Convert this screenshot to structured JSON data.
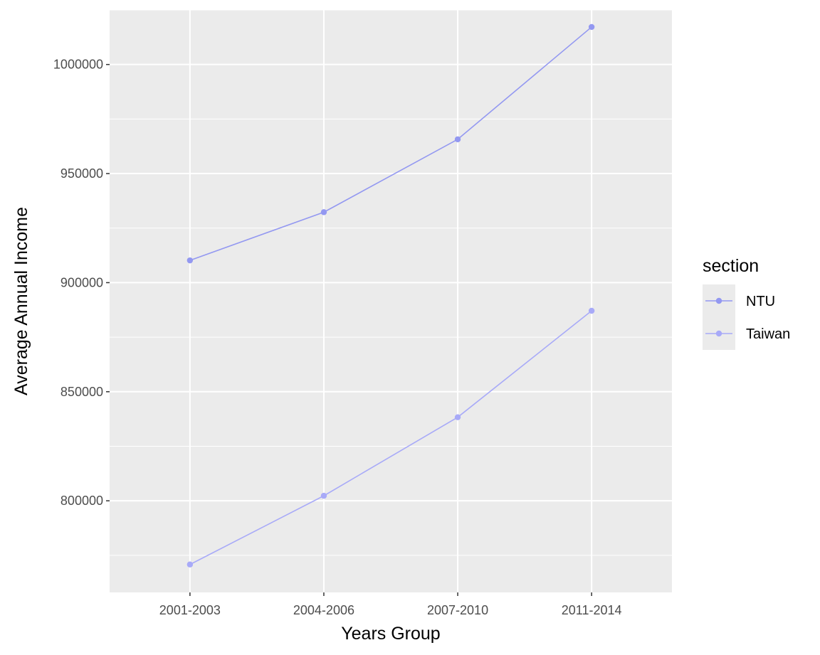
{
  "chart_data": {
    "type": "line",
    "categories": [
      "2001-2003",
      "2004-2006",
      "2007-2010",
      "2011-2014"
    ],
    "series": [
      {
        "name": "NTU",
        "values": [
          910200,
          932300,
          965700,
          1017200
        ],
        "color": "#9398f1"
      },
      {
        "name": "Taiwan",
        "values": [
          770800,
          802300,
          838300,
          887100
        ],
        "color": "#a8aaf8"
      }
    ],
    "xlabel": "Years Group",
    "ylabel": "Average Annual Income",
    "ylim": [
      758000,
      1025000
    ],
    "yticks": [
      800000,
      850000,
      900000,
      950000,
      1000000
    ],
    "ytick_labels": [
      "800000",
      "850000",
      "900000",
      "950000",
      "1000000"
    ],
    "grid": true,
    "panel_color": "#ebebeb",
    "grid_color": "#ffffff",
    "legend": {
      "title": "section",
      "position": "right"
    }
  }
}
